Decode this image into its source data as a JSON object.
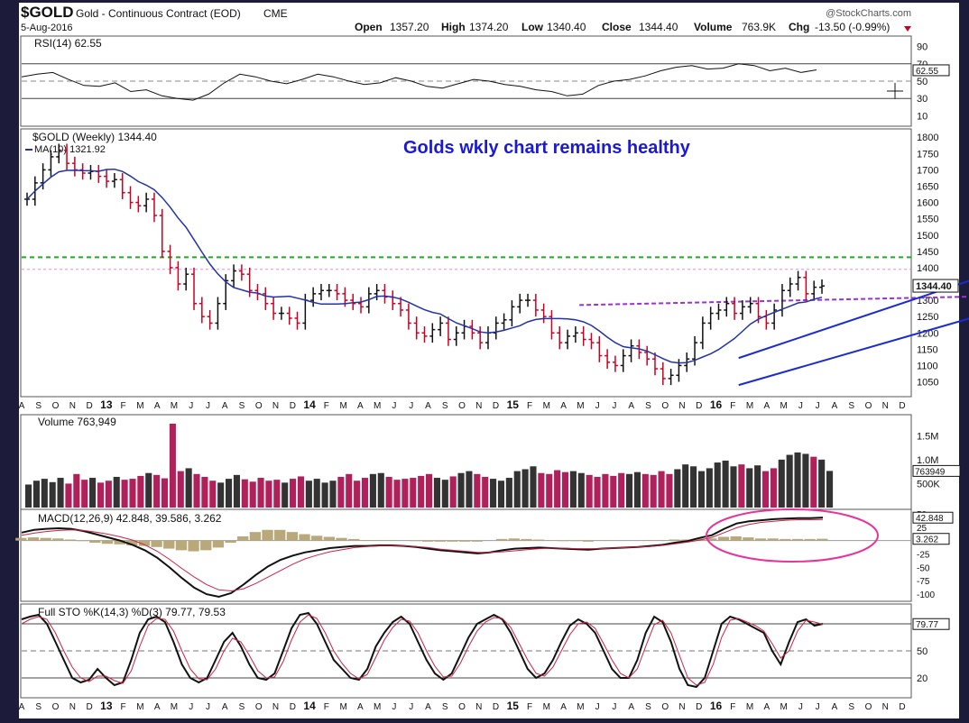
{
  "header": {
    "symbol": "$GOLD",
    "description": "Gold - Continuous Contract (EOD)",
    "exchange": "CME",
    "date": "5-Aug-2016",
    "source": "@StockCharts.com",
    "ohlc": {
      "open_label": "Open",
      "open": "1357.20",
      "high_label": "High",
      "high": "1374.20",
      "low_label": "Low",
      "low": "1340.40",
      "close_label": "Close",
      "close": "1344.40",
      "volume_label": "Volume",
      "volume": "763.9K",
      "chg_label": "Chg",
      "chg": "-13.50 (-0.99%)"
    }
  },
  "annotation": {
    "text": "Golds wkly chart remains healthy",
    "color": "#1a1ad6"
  },
  "colors": {
    "up": "#111111",
    "down": "#cc0022",
    "ma": "#2233aa",
    "channel": "#1a2bd6",
    "resistance": "#22aa22",
    "support": "#9933cc",
    "circle": "#e8339a",
    "panel_bg": "#ffffff",
    "frame": "#1c1c3a"
  },
  "x_axis_labels": [
    "A",
    "S",
    "O",
    "N",
    "D",
    "13",
    "F",
    "M",
    "A",
    "M",
    "J",
    "J",
    "A",
    "S",
    "O",
    "N",
    "D",
    "14",
    "F",
    "M",
    "A",
    "M",
    "J",
    "J",
    "A",
    "S",
    "O",
    "N",
    "D",
    "15",
    "F",
    "M",
    "A",
    "M",
    "J",
    "J",
    "A",
    "S",
    "O",
    "N",
    "D",
    "16",
    "F",
    "M",
    "A",
    "M",
    "J",
    "J",
    "A",
    "S",
    "O",
    "N",
    "D"
  ],
  "chart_data": [
    {
      "name": "RSI panel",
      "type": "line",
      "legend": "RSI(14) 62.55",
      "value_label": "62.55",
      "yticks": [
        90,
        70,
        50,
        30,
        10
      ],
      "ylim": [
        0,
        100
      ],
      "values": [
        55,
        58,
        60,
        52,
        45,
        44,
        48,
        38,
        40,
        33,
        30,
        28,
        35,
        48,
        58,
        55,
        50,
        47,
        52,
        58,
        55,
        50,
        46,
        48,
        54,
        50,
        44,
        42,
        47,
        52,
        50,
        46,
        44,
        40,
        38,
        33,
        35,
        45,
        50,
        52,
        56,
        62,
        66,
        68,
        64,
        65,
        70,
        68,
        62,
        65,
        60,
        63
      ]
    },
    {
      "name": "Price panel",
      "type": "candlestick",
      "legend_title": "$GOLD (Weekly) 1344.40",
      "legend_ma": "MA(10) 1321.92",
      "last_label": "1344.40",
      "ylim": [
        1010,
        1820
      ],
      "yticks": [
        1800,
        1750,
        1700,
        1650,
        1600,
        1550,
        1500,
        1450,
        1400,
        1350,
        1300,
        1250,
        1200,
        1150,
        1100,
        1050
      ],
      "resistance_level": 1432,
      "pink_level": 1395,
      "support_line": {
        "from_week": 133,
        "to_week": 240,
        "value": 1313
      },
      "channel_lower": {
        "from": [
          171,
          1040
        ],
        "to": [
          250,
          1333
        ]
      },
      "channel_upper": {
        "from": [
          171,
          1123
        ],
        "to": [
          250,
          1463
        ]
      },
      "closes": [
        1610,
        1660,
        1700,
        1740,
        1760,
        1720,
        1700,
        1690,
        1695,
        1680,
        1665,
        1670,
        1630,
        1600,
        1590,
        1610,
        1560,
        1450,
        1400,
        1350,
        1380,
        1290,
        1250,
        1230,
        1290,
        1360,
        1390,
        1380,
        1330,
        1320,
        1290,
        1260,
        1260,
        1245,
        1230,
        1300,
        1320,
        1330,
        1330,
        1320,
        1300,
        1290,
        1280,
        1320,
        1330,
        1310,
        1290,
        1270,
        1230,
        1200,
        1190,
        1210,
        1230,
        1180,
        1200,
        1220,
        1200,
        1170,
        1200,
        1230,
        1240,
        1280,
        1300,
        1300,
        1270,
        1250,
        1200,
        1170,
        1190,
        1200,
        1180,
        1170,
        1130,
        1110,
        1100,
        1130,
        1160,
        1140,
        1120,
        1090,
        1060,
        1070,
        1100,
        1120,
        1170,
        1230,
        1260,
        1270,
        1290,
        1260,
        1280,
        1290,
        1250,
        1230,
        1270,
        1330,
        1350,
        1370,
        1320,
        1340,
        1344
      ],
      "ma_start": 1520,
      "ma_end": 1321.92
    },
    {
      "name": "Volume panel",
      "type": "bar",
      "legend": "Volume 763,949",
      "last_label": "763949",
      "yticks_labels": [
        "1.5M",
        "1.0M",
        "500K"
      ],
      "yticks_values": [
        1500000,
        1000000,
        500000
      ],
      "ylim": [
        0,
        1900000
      ],
      "values": [
        480,
        560,
        600,
        530,
        620,
        500,
        700,
        580,
        620,
        520,
        560,
        640,
        580,
        600,
        660,
        720,
        680,
        610,
        1750,
        760,
        820,
        700,
        640,
        560,
        520,
        600,
        680,
        590,
        540,
        620,
        560,
        580,
        520,
        600,
        650,
        560,
        600,
        520,
        560,
        640,
        700,
        560,
        620,
        700,
        720,
        640,
        580,
        600,
        620,
        660,
        700,
        620,
        580,
        650,
        720,
        760,
        700,
        640,
        600,
        560,
        620,
        760,
        800,
        860,
        720,
        700,
        780,
        740,
        760,
        720,
        680,
        640,
        700,
        660,
        720,
        700,
        740,
        700,
        680,
        760,
        700,
        800,
        900,
        860,
        760,
        820,
        940,
        980,
        860,
        900,
        820,
        880,
        760,
        820,
        1000,
        1100,
        1150,
        1120,
        1060,
        1000,
        764
      ]
    },
    {
      "name": "MACD panel",
      "type": "line",
      "legend": "MACD(12,26,9) 42.848, 39.586, 3.262",
      "macd_label": "42.848",
      "hist_label": "3.262",
      "yticks": [
        50,
        25,
        0,
        -25,
        -50,
        -75,
        -100
      ],
      "ylim": [
        -110,
        55
      ],
      "macd": [
        15,
        20,
        22,
        23,
        22,
        18,
        12,
        6,
        0,
        -8,
        -18,
        -32,
        -50,
        -70,
        -88,
        -100,
        -105,
        -98,
        -82,
        -64,
        -48,
        -36,
        -28,
        -22,
        -18,
        -14,
        -12,
        -10,
        -10,
        -9,
        -9,
        -10,
        -12,
        -15,
        -18,
        -20,
        -22,
        -24,
        -22,
        -18,
        -15,
        -14,
        -13,
        -14,
        -15,
        -16,
        -17,
        -15,
        -14,
        -13,
        -12,
        -10,
        -8,
        -4,
        -1,
        5,
        10,
        22,
        32,
        36,
        38,
        40,
        41,
        42,
        42,
        43
      ],
      "signal": [
        10,
        14,
        17,
        19,
        20,
        19,
        16,
        12,
        7,
        1,
        -8,
        -20,
        -35,
        -52,
        -68,
        -82,
        -92,
        -94,
        -90,
        -80,
        -68,
        -56,
        -44,
        -34,
        -27,
        -21,
        -17,
        -13,
        -11,
        -10,
        -10,
        -10,
        -11,
        -13,
        -16,
        -18,
        -20,
        -22,
        -22,
        -21,
        -19,
        -17,
        -15,
        -14,
        -14,
        -15,
        -15,
        -15,
        -14,
        -13,
        -12,
        -11,
        -9,
        -6,
        -3,
        1,
        6,
        15,
        24,
        30,
        34,
        36,
        38,
        39,
        39,
        39.586
      ]
    },
    {
      "name": "Full STO panel",
      "type": "line",
      "legend": "Full STO %K(14,3) %D(3) 79.77, 79.53",
      "last_label": "79.77",
      "yticks": [
        80,
        50,
        20
      ],
      "ylim": [
        0,
        100
      ],
      "k": [
        85,
        88,
        90,
        80,
        60,
        40,
        20,
        15,
        18,
        30,
        20,
        12,
        15,
        40,
        70,
        85,
        88,
        82,
        60,
        35,
        20,
        15,
        20,
        40,
        60,
        70,
        55,
        35,
        20,
        18,
        25,
        50,
        75,
        90,
        92,
        80,
        60,
        40,
        30,
        20,
        18,
        30,
        55,
        70,
        82,
        88,
        80,
        60,
        40,
        25,
        18,
        25,
        45,
        65,
        80,
        85,
        90,
        85,
        70,
        50,
        30,
        20,
        25,
        40,
        60,
        78,
        85,
        80,
        70,
        50,
        30,
        20,
        20,
        40,
        70,
        88,
        82,
        60,
        30,
        12,
        10,
        20,
        50,
        80,
        88,
        85,
        80,
        75,
        70,
        50,
        35,
        60,
        82,
        85,
        78,
        80
      ],
      "d": [
        80,
        85,
        88,
        85,
        70,
        50,
        32,
        20,
        16,
        22,
        22,
        17,
        14,
        28,
        55,
        78,
        86,
        85,
        72,
        50,
        30,
        19,
        18,
        30,
        50,
        64,
        60,
        45,
        28,
        20,
        21,
        38,
        62,
        82,
        90,
        86,
        70,
        50,
        36,
        25,
        19,
        24,
        43,
        62,
        76,
        85,
        83,
        70,
        50,
        33,
        21,
        22,
        36,
        55,
        72,
        82,
        87,
        86,
        76,
        58,
        40,
        25,
        22,
        32,
        50,
        68,
        80,
        82,
        75,
        58,
        40,
        25,
        20,
        30,
        55,
        79,
        84,
        70,
        45,
        20,
        12,
        15,
        35,
        65,
        84,
        86,
        82,
        78,
        72,
        58,
        42,
        50,
        72,
        84,
        82,
        79.53
      ]
    }
  ]
}
